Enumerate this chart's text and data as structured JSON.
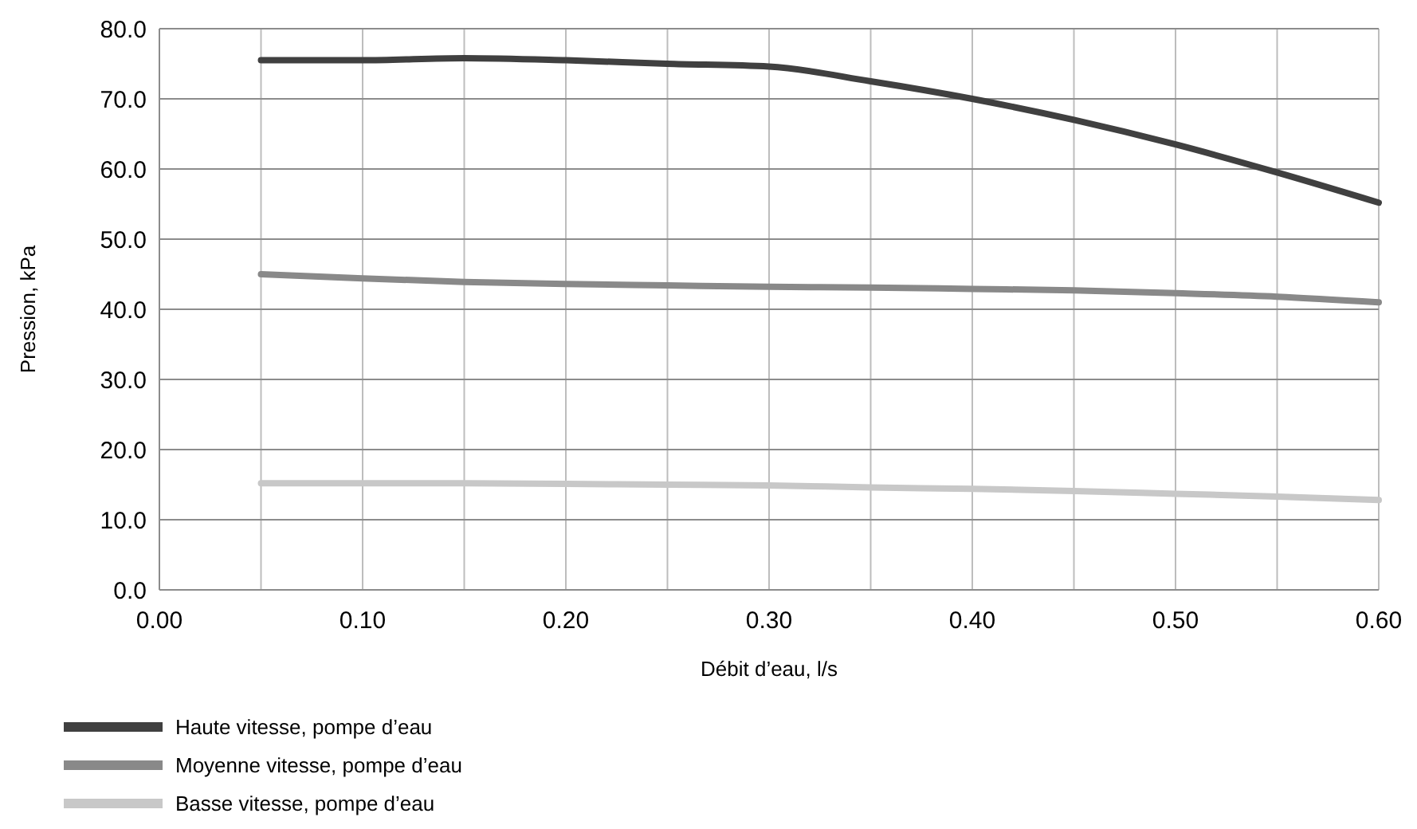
{
  "chart_data": {
    "type": "line",
    "xlabel": "Débit d’eau, l/s",
    "ylabel": "Pression, kPa",
    "x": [
      0.05,
      0.1,
      0.15,
      0.2,
      0.25,
      0.3,
      0.35,
      0.4,
      0.45,
      0.5,
      0.55,
      0.6
    ],
    "series": [
      {
        "name": "Haute vitesse, pompe d’eau",
        "color": "#404040",
        "values": [
          75.5,
          75.5,
          75.8,
          75.5,
          75.0,
          74.6,
          72.5,
          70.0,
          67.0,
          63.5,
          59.5,
          55.2
        ]
      },
      {
        "name": "Moyenne vitesse, pompe d’eau",
        "color": "#898989",
        "values": [
          45.0,
          44.4,
          43.9,
          43.6,
          43.4,
          43.2,
          43.1,
          42.9,
          42.7,
          42.3,
          41.8,
          41.0
        ]
      },
      {
        "name": "Basse vitesse, pompe d’eau",
        "color": "#c8c8c8",
        "values": [
          15.2,
          15.2,
          15.2,
          15.1,
          15.0,
          14.9,
          14.6,
          14.4,
          14.1,
          13.7,
          13.3,
          12.8
        ]
      }
    ],
    "xlim": [
      0,
      0.6
    ],
    "xticks": [
      {
        "value": 0,
        "label": "0.00"
      },
      {
        "value": 0.05,
        "label": null
      },
      {
        "value": 0.1,
        "label": "0.10"
      },
      {
        "value": 0.15,
        "label": null
      },
      {
        "value": 0.2,
        "label": "0.20"
      },
      {
        "value": 0.25,
        "label": null
      },
      {
        "value": 0.3,
        "label": "0.30"
      },
      {
        "value": 0.35,
        "label": null
      },
      {
        "value": 0.4,
        "label": "0.40"
      },
      {
        "value": 0.45,
        "label": null
      },
      {
        "value": 0.5,
        "label": "0.50"
      },
      {
        "value": 0.55,
        "label": null
      },
      {
        "value": 0.6,
        "label": "0.60"
      }
    ],
    "ylim": [
      0,
      80
    ],
    "yticks": [
      {
        "value": 0,
        "label": "0.0"
      },
      {
        "value": 10,
        "label": "10.0"
      },
      {
        "value": 20,
        "label": "20.0"
      },
      {
        "value": 30,
        "label": "30.0"
      },
      {
        "value": 40,
        "label": "40.0"
      },
      {
        "value": 50,
        "label": "50.0"
      },
      {
        "value": 60,
        "label": "60.0"
      },
      {
        "value": 70,
        "label": "70.0"
      },
      {
        "value": 80,
        "label": "80.0"
      }
    ],
    "grid": true,
    "legend": "bottom",
    "marker": "none",
    "line_style": "solid"
  }
}
